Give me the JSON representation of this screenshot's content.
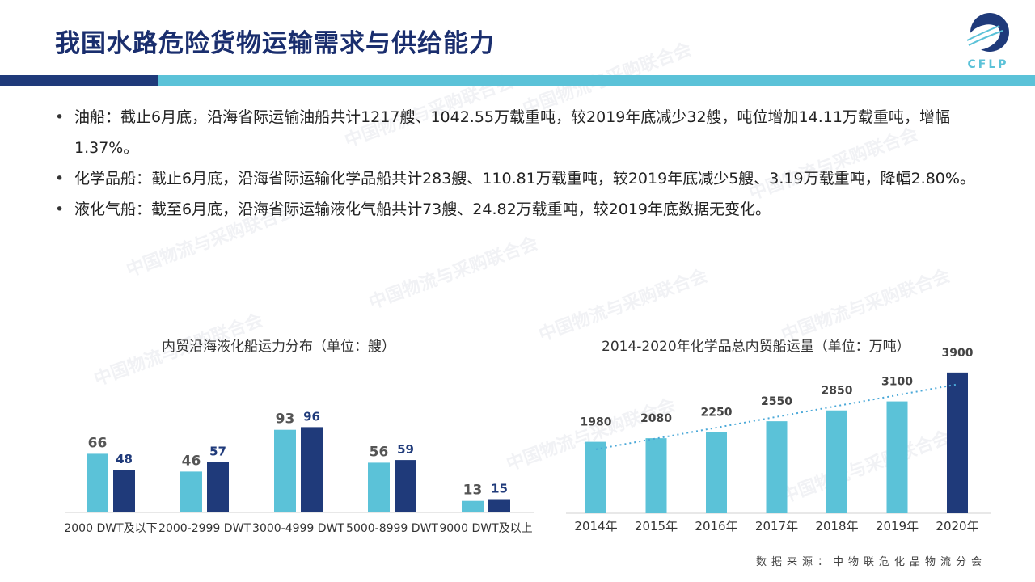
{
  "header": {
    "title": "我国水路危险货物运输需求与供给能力",
    "logo_text": "CFLP"
  },
  "bullets": [
    "油船：截止6月底，沿海省际运输油船共计1217艘、1042.55万载重吨，较2019年底减少32艘，吨位增加14.11万载重吨，增幅1.37%。",
    "化学品船：截止6月底，沿海省际运输化学品船共计283艘、110.81万载重吨，较2019年底减少5艘、3.19万载重吨，降幅2.80%。",
    "液化气船：截至6月底，沿海省际运输液化气船共计73艘、24.82万载重吨，较2019年底数据无变化。"
  ],
  "watermark": {
    "line1": "中国物流与采购联合会",
    "line2": "危 化 品 物 流 分 会"
  },
  "footer": {
    "source": "数据来源：中物联危化品物流分会"
  },
  "colors": {
    "title": "#1a2e6e",
    "light_bar": "#5bc2d8",
    "dark_bar": "#1f3a7a"
  },
  "chart_data": [
    {
      "type": "bar",
      "title": "内贸沿海液化船运力分布（单位：艘）",
      "categories": [
        "2000 DWT及以下",
        "2000-2999 DWT",
        "3000-4999 DWT",
        "5000-8999 DWT",
        "9000 DWT及以上"
      ],
      "series": [
        {
          "values": [
            66,
            46,
            93,
            56,
            13
          ],
          "color": "#5bc2d8",
          "label_color": "#555555"
        },
        {
          "values": [
            48,
            57,
            96,
            59,
            15
          ],
          "color": "#1f3a7a",
          "label_color": "#1f3a7a"
        }
      ],
      "ylim": [
        0,
        100
      ],
      "grid": false,
      "legend": "none"
    },
    {
      "type": "bar",
      "title": "2014-2020年化学品总内贸船运量（单位：万吨）",
      "categories": [
        "2014年",
        "2015年",
        "2016年",
        "2017年",
        "2018年",
        "2019年",
        "2020年"
      ],
      "values": [
        1980,
        2080,
        2250,
        2550,
        2850,
        3100,
        3900
      ],
      "colors": [
        "#5bc2d8",
        "#5bc2d8",
        "#5bc2d8",
        "#5bc2d8",
        "#5bc2d8",
        "#5bc2d8",
        "#1f3a7a"
      ],
      "trendline": true,
      "trend_color": "#4aa8d8",
      "ylim": [
        0,
        4300
      ],
      "grid": false,
      "legend": "none"
    }
  ]
}
